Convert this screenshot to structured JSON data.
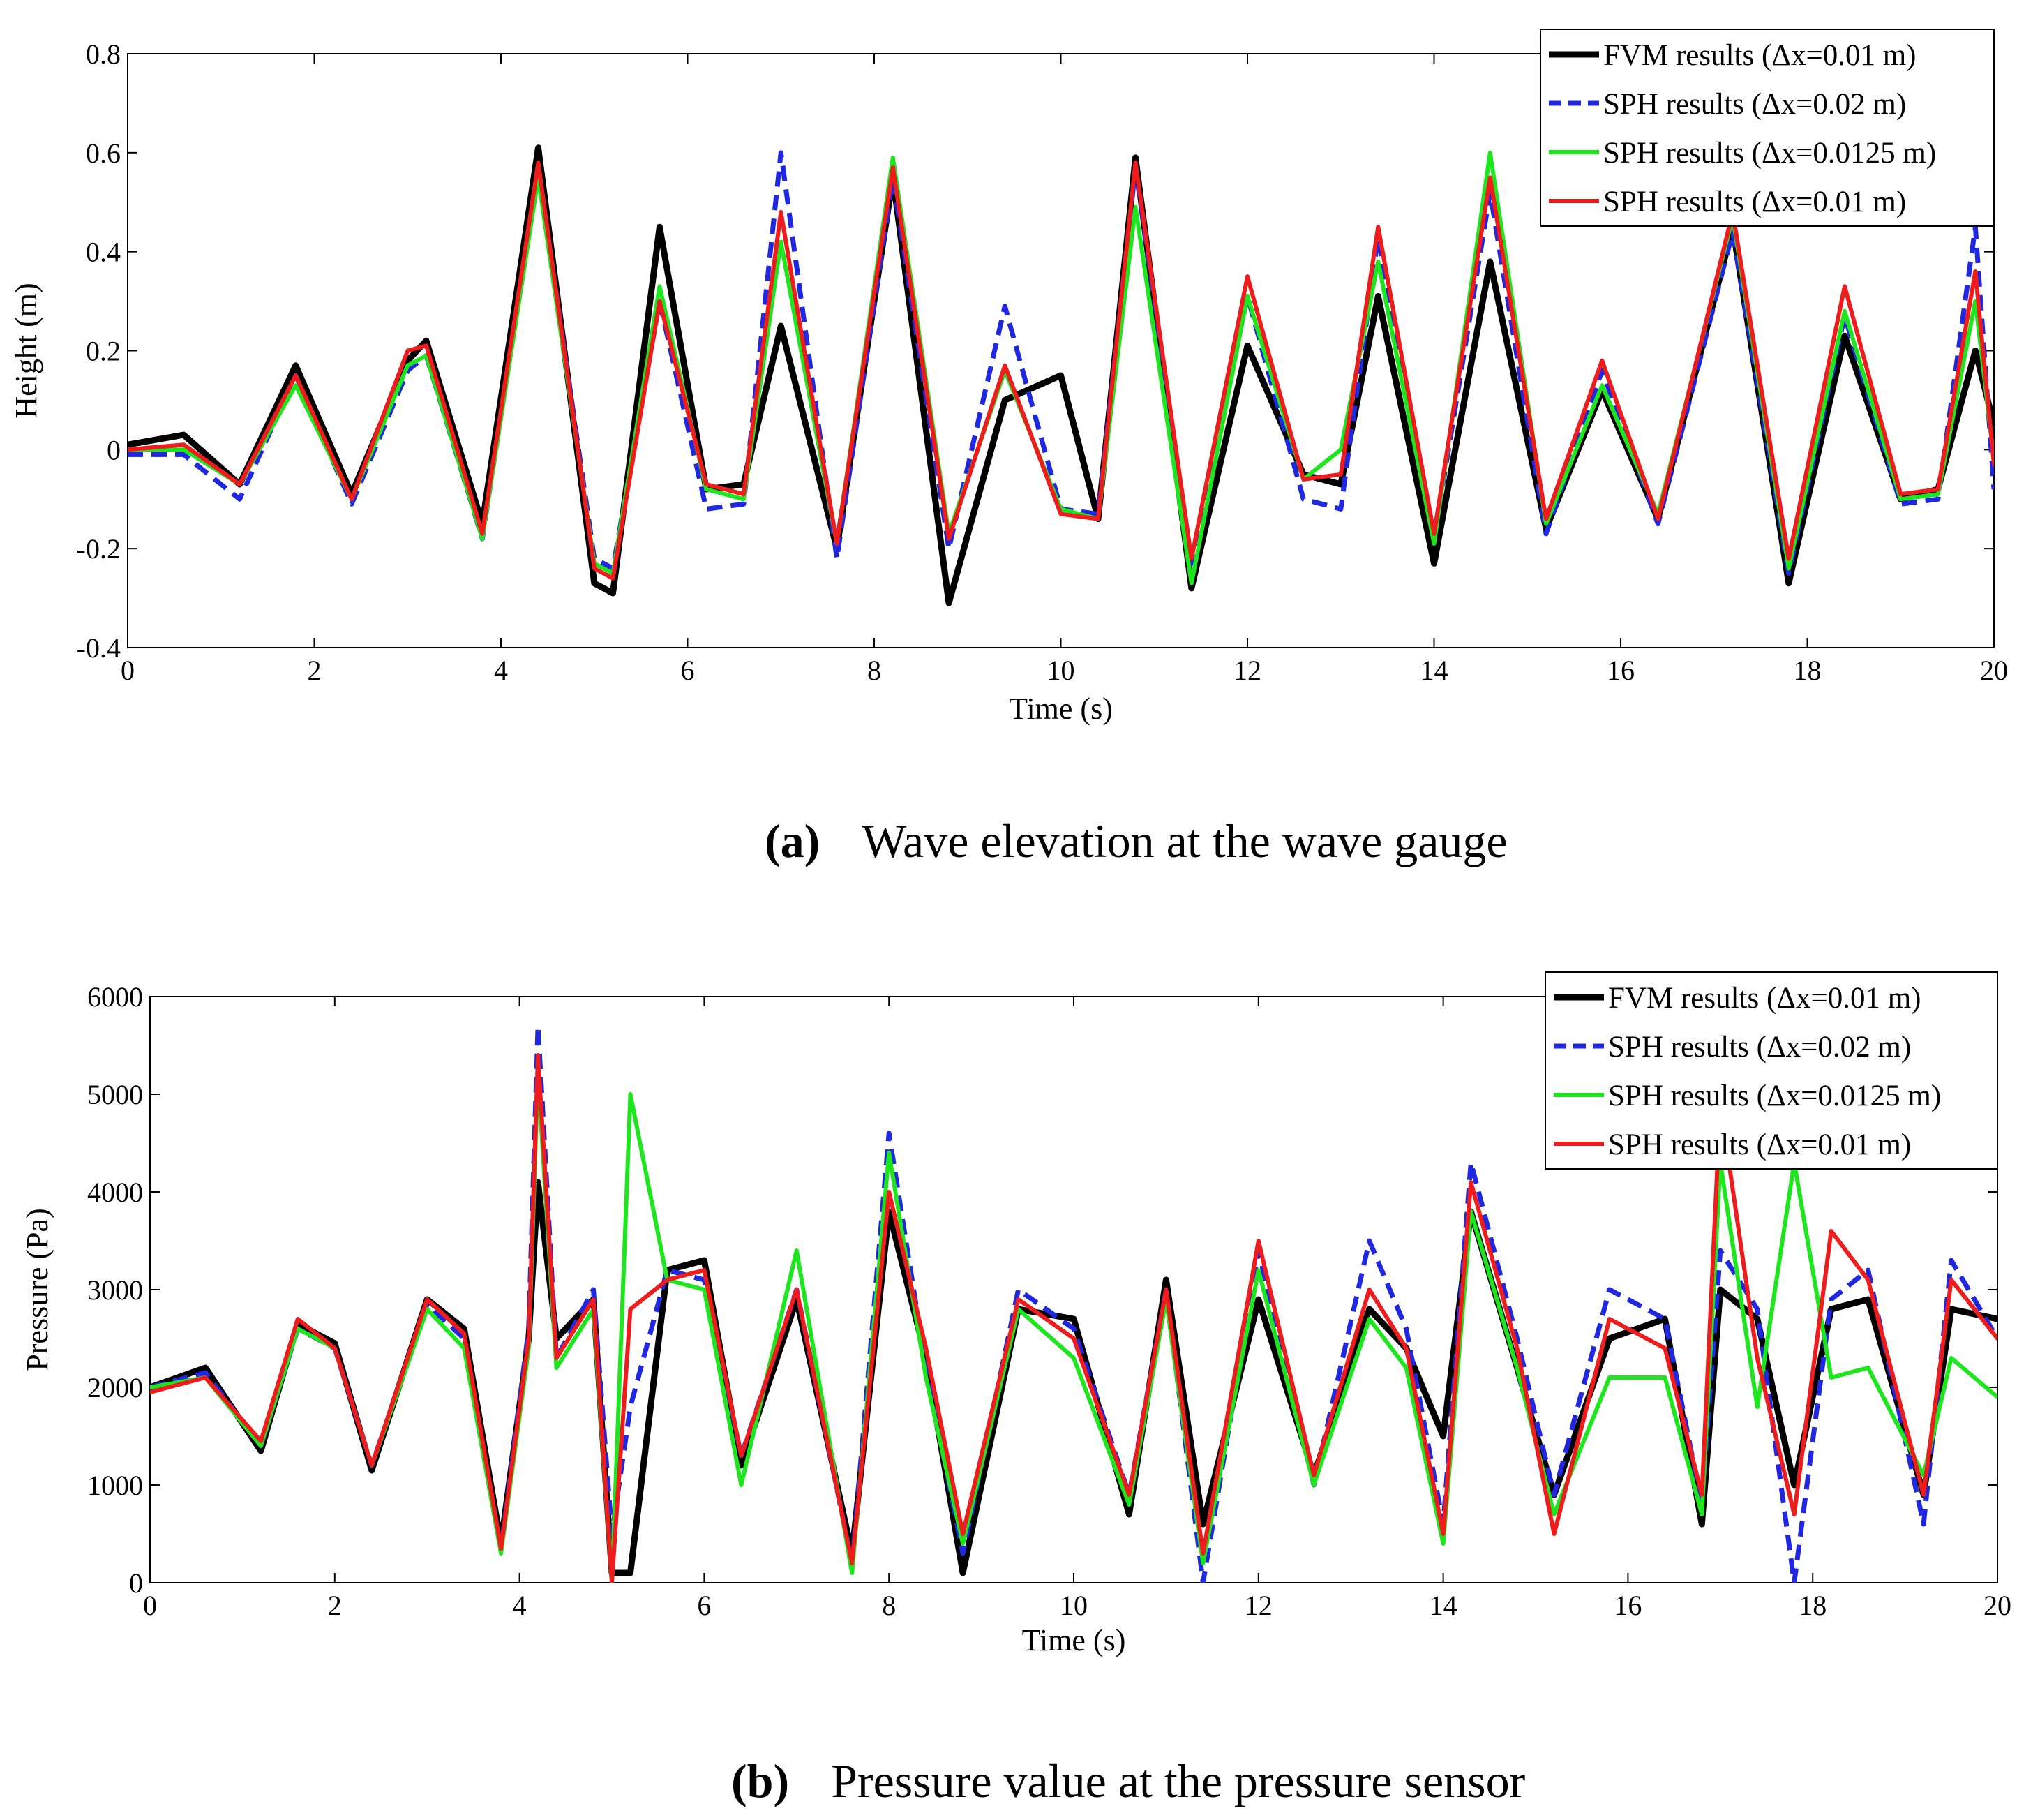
{
  "figure": {
    "panels": [
      {
        "tag": "(a)",
        "caption": "Wave elevation at the wave gauge"
      },
      {
        "tag": "(b)",
        "caption": "Pressure value at the pressure sensor"
      }
    ]
  },
  "chart_data": [
    {
      "type": "line",
      "title": "",
      "xlabel": "Time (s)",
      "ylabel": "Height (m)",
      "xlim": [
        0,
        20
      ],
      "ylim": [
        -0.4,
        0.8
      ],
      "xticks": [
        0,
        2,
        4,
        6,
        8,
        10,
        12,
        14,
        16,
        18,
        20
      ],
      "xtick_labels": [
        "0",
        "2",
        "4",
        "6",
        "8",
        "10",
        "12",
        "14",
        "16",
        "18",
        "20"
      ],
      "yticks": [
        -0.4,
        -0.2,
        0,
        0.2,
        0.4,
        0.6,
        0.8
      ],
      "ytick_labels": [
        "-0.4",
        "-0.2",
        "0",
        "0.2",
        "0.4",
        "0.6",
        "0.8"
      ],
      "grid": false,
      "legend_position": "top-right",
      "x": [
        0,
        0.6,
        1.2,
        1.8,
        2.4,
        3.0,
        3.2,
        3.8,
        4.4,
        5.0,
        5.2,
        5.7,
        6.2,
        6.6,
        7.0,
        7.6,
        8.2,
        8.8,
        9.4,
        10.0,
        10.4,
        10.8,
        11.4,
        12.0,
        12.6,
        13.0,
        13.4,
        14.0,
        14.6,
        15.2,
        15.8,
        16.4,
        17.2,
        17.8,
        18.4,
        19.0,
        19.4,
        19.8,
        20.0
      ],
      "series": [
        {
          "name": "FVM results (Δx=0.01 m)",
          "color": "#000000",
          "style": "solid",
          "width": 9,
          "values": [
            0.01,
            0.03,
            -0.07,
            0.17,
            -0.09,
            0.18,
            0.22,
            -0.15,
            0.61,
            -0.27,
            -0.29,
            0.45,
            -0.08,
            -0.07,
            0.25,
            -0.2,
            0.55,
            -0.31,
            0.1,
            0.15,
            -0.14,
            0.59,
            -0.28,
            0.21,
            -0.05,
            -0.07,
            0.31,
            -0.23,
            0.38,
            -0.16,
            0.12,
            -0.14,
            0.45,
            -0.27,
            0.23,
            -0.1,
            -0.08,
            0.2,
            0.05
          ]
        },
        {
          "name": "SPH results (Δx=0.02 m)",
          "color": "#1f28e0",
          "style": "dashed",
          "width": 7,
          "values": [
            -0.01,
            -0.01,
            -0.1,
            0.15,
            -0.11,
            0.16,
            0.19,
            -0.18,
            0.57,
            -0.22,
            -0.24,
            0.3,
            -0.12,
            -0.11,
            0.6,
            -0.22,
            0.55,
            -0.2,
            0.29,
            -0.12,
            -0.13,
            0.57,
            -0.23,
            0.31,
            -0.1,
            -0.12,
            0.43,
            -0.18,
            0.52,
            -0.17,
            0.16,
            -0.15,
            0.44,
            -0.25,
            0.27,
            -0.11,
            -0.1,
            0.45,
            -0.08
          ]
        },
        {
          "name": "SPH results (Δx=0.0125 m)",
          "color": "#1ee61e",
          "style": "solid",
          "width": 6,
          "values": [
            0.0,
            0.0,
            -0.07,
            0.13,
            -0.1,
            0.17,
            0.19,
            -0.18,
            0.55,
            -0.23,
            -0.25,
            0.33,
            -0.08,
            -0.1,
            0.42,
            -0.19,
            0.59,
            -0.17,
            0.16,
            -0.12,
            -0.14,
            0.49,
            -0.27,
            0.31,
            -0.06,
            0.0,
            0.38,
            -0.19,
            0.6,
            -0.15,
            0.13,
            -0.13,
            0.47,
            -0.24,
            0.28,
            -0.1,
            -0.09,
            0.3,
            -0.02
          ]
        },
        {
          "name": "SPH results (Δx=0.01 m)",
          "color": "#ee1c1c",
          "style": "solid",
          "width": 6,
          "values": [
            0.0,
            0.01,
            -0.07,
            0.15,
            -0.1,
            0.2,
            0.21,
            -0.17,
            0.58,
            -0.24,
            -0.26,
            0.3,
            -0.07,
            -0.09,
            0.48,
            -0.19,
            0.57,
            -0.18,
            0.17,
            -0.13,
            -0.14,
            0.58,
            -0.22,
            0.35,
            -0.06,
            -0.05,
            0.45,
            -0.17,
            0.55,
            -0.14,
            0.18,
            -0.14,
            0.48,
            -0.22,
            0.33,
            -0.09,
            -0.08,
            0.36,
            -0.03
          ]
        }
      ]
    },
    {
      "type": "line",
      "title": "",
      "xlabel": "Time (s)",
      "ylabel": "Pressure (Pa)",
      "xlim": [
        0,
        20
      ],
      "ylim": [
        0,
        6000
      ],
      "xticks": [
        0,
        2,
        4,
        6,
        8,
        10,
        12,
        14,
        16,
        18,
        20
      ],
      "xtick_labels": [
        "0",
        "2",
        "4",
        "6",
        "8",
        "10",
        "12",
        "14",
        "16",
        "18",
        "20"
      ],
      "yticks": [
        0,
        1000,
        2000,
        3000,
        4000,
        5000,
        6000
      ],
      "ytick_labels": [
        "0",
        "1000",
        "2000",
        "3000",
        "4000",
        "5000",
        "6000"
      ],
      "grid": false,
      "legend_position": "top-right",
      "x": [
        0,
        0.6,
        1.2,
        1.6,
        2.0,
        2.4,
        3.0,
        3.4,
        3.8,
        4.1,
        4.2,
        4.4,
        4.8,
        5.0,
        5.2,
        5.6,
        6.0,
        6.4,
        7.0,
        7.6,
        8.0,
        8.4,
        8.8,
        9.4,
        10.0,
        10.6,
        11.0,
        11.4,
        12.0,
        12.6,
        13.2,
        13.6,
        14.0,
        14.3,
        14.8,
        15.2,
        15.8,
        16.4,
        16.8,
        17.0,
        17.4,
        17.8,
        18.2,
        18.6,
        19.2,
        19.5,
        20.0
      ],
      "series": [
        {
          "name": "FVM results (Δx=0.01 m)",
          "color": "#000000",
          "style": "solid",
          "width": 9,
          "values": [
            2000,
            2200,
            1350,
            2650,
            2450,
            1150,
            2900,
            2600,
            400,
            2500,
            4100,
            2500,
            2900,
            100,
            100,
            3200,
            3300,
            1200,
            2900,
            300,
            3800,
            2300,
            100,
            2800,
            2700,
            700,
            3100,
            600,
            2900,
            1100,
            2800,
            2400,
            1500,
            3800,
            2200,
            900,
            2500,
            2700,
            600,
            3000,
            2700,
            1000,
            2800,
            2900,
            900,
            2800,
            2700
          ]
        },
        {
          "name": "SPH results (Δx=0.02 m)",
          "color": "#1f28e0",
          "style": "dashed",
          "width": 7,
          "values": [
            2000,
            2150,
            1400,
            2600,
            2400,
            1200,
            2850,
            2500,
            350,
            2600,
            5700,
            2300,
            3000,
            500,
            1800,
            3200,
            3100,
            1300,
            3000,
            200,
            4600,
            2200,
            300,
            3000,
            2600,
            900,
            3000,
            0,
            3400,
            1000,
            3500,
            2600,
            600,
            4300,
            2500,
            900,
            3000,
            2700,
            800,
            3400,
            2800,
            0,
            2900,
            3200,
            600,
            3300,
            2500
          ]
        },
        {
          "name": "SPH results (Δx=0.0125 m)",
          "color": "#1ee61e",
          "style": "solid",
          "width": 6,
          "values": [
            2000,
            2100,
            1400,
            2600,
            2400,
            1200,
            2800,
            2400,
            300,
            2400,
            5200,
            2200,
            2800,
            0,
            5000,
            3100,
            3000,
            1000,
            3400,
            100,
            4400,
            2100,
            400,
            2800,
            2300,
            800,
            2900,
            200,
            3200,
            1000,
            2700,
            2200,
            400,
            3800,
            2200,
            700,
            2100,
            2100,
            700,
            4300,
            1800,
            4300,
            2100,
            2200,
            1100,
            2300,
            1900
          ]
        },
        {
          "name": "SPH results (Δx=0.01 m)",
          "color": "#ee1c1c",
          "style": "solid",
          "width": 6,
          "values": [
            1950,
            2100,
            1450,
            2700,
            2400,
            1200,
            2900,
            2550,
            350,
            2500,
            5400,
            2300,
            2900,
            0,
            2800,
            3100,
            3200,
            1300,
            3000,
            200,
            4000,
            2400,
            500,
            2900,
            2500,
            900,
            3000,
            300,
            3500,
            1100,
            3000,
            2400,
            500,
            4100,
            2400,
            500,
            2700,
            2400,
            900,
            4900,
            2300,
            700,
            3600,
            3100,
            900,
            3100,
            2500
          ]
        }
      ]
    }
  ]
}
